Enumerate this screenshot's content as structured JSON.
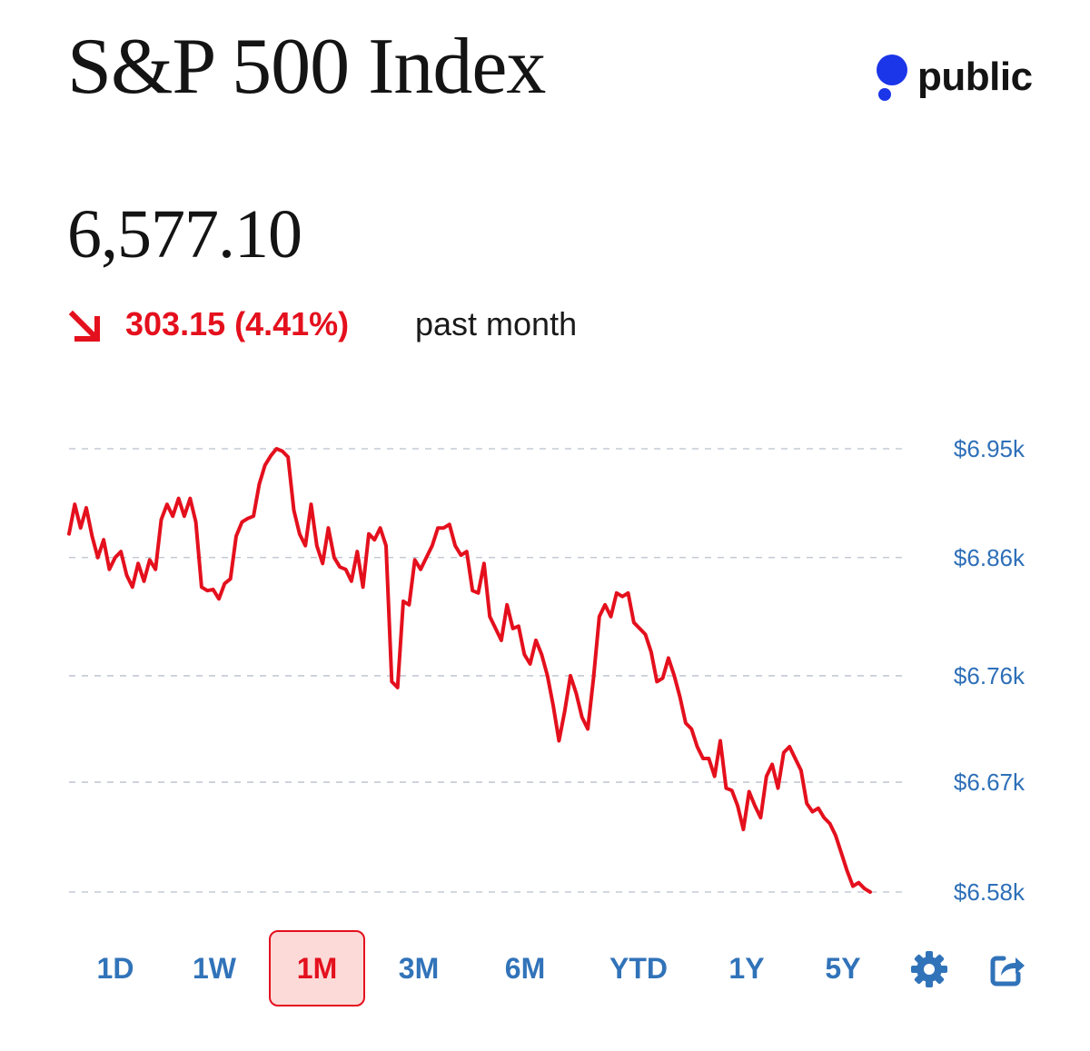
{
  "header": {
    "title": "S&P 500 Index",
    "brand": "public"
  },
  "quote": {
    "price": "6,577.10",
    "change": "303.15 (4.41%)",
    "period": "past month"
  },
  "colors": {
    "line": "#e4101d",
    "tick": "#2e6fb8",
    "accent": "#3173b9",
    "brand_dot": "#1b35e8"
  },
  "ranges": [
    {
      "label": "1D",
      "active": false
    },
    {
      "label": "1W",
      "active": false
    },
    {
      "label": "1M",
      "active": true
    },
    {
      "label": "3M",
      "active": false
    },
    {
      "label": "6M",
      "active": false
    },
    {
      "label": "YTD",
      "active": false
    },
    {
      "label": "1Y",
      "active": false
    },
    {
      "label": "5Y",
      "active": false
    }
  ],
  "tools": {
    "settings_icon": "gear-icon",
    "share_icon": "share-icon"
  },
  "chart_data": {
    "type": "line",
    "title": "S&P 500 Index",
    "xlabel": "",
    "ylabel": "",
    "grid": true,
    "ylim": [
      6577.1,
      6952
    ],
    "yticks": [
      6952,
      6860,
      6760,
      6670,
      6577.1
    ],
    "ytick_labels": [
      "$6.95k",
      "$6.86k",
      "$6.76k",
      "$6.67k",
      "$6.58k"
    ],
    "series": [
      {
        "name": "S&P 500",
        "values": [
          6880,
          6905,
          6885,
          6902,
          6878,
          6860,
          6875,
          6850,
          6860,
          6865,
          6845,
          6835,
          6855,
          6840,
          6858,
          6850,
          6892,
          6905,
          6895,
          6910,
          6895,
          6910,
          6890,
          6835,
          6832,
          6833,
          6825,
          6838,
          6842,
          6878,
          6890,
          6893,
          6895,
          6922,
          6938,
          6946,
          6952,
          6950,
          6945,
          6900,
          6880,
          6870,
          6905,
          6870,
          6855,
          6885,
          6860,
          6852,
          6850,
          6840,
          6865,
          6835,
          6880,
          6875,
          6885,
          6870,
          6755,
          6750,
          6823,
          6820,
          6858,
          6850,
          6860,
          6870,
          6885,
          6885,
          6888,
          6870,
          6862,
          6865,
          6832,
          6830,
          6855,
          6810,
          6800,
          6790,
          6820,
          6800,
          6802,
          6778,
          6770,
          6790,
          6778,
          6760,
          6735,
          6705,
          6730,
          6760,
          6745,
          6725,
          6715,
          6758,
          6810,
          6820,
          6810,
          6830,
          6827,
          6830,
          6805,
          6800,
          6795,
          6780,
          6755,
          6758,
          6775,
          6760,
          6742,
          6720,
          6715,
          6700,
          6690,
          6690,
          6675,
          6705,
          6665,
          6663,
          6650,
          6630,
          6662,
          6650,
          6640,
          6675,
          6685,
          6665,
          6695,
          6700,
          6690,
          6680,
          6652,
          6645,
          6648,
          6640,
          6635,
          6625,
          6610,
          6595,
          6582,
          6585,
          6580,
          6577.1
        ]
      }
    ]
  }
}
